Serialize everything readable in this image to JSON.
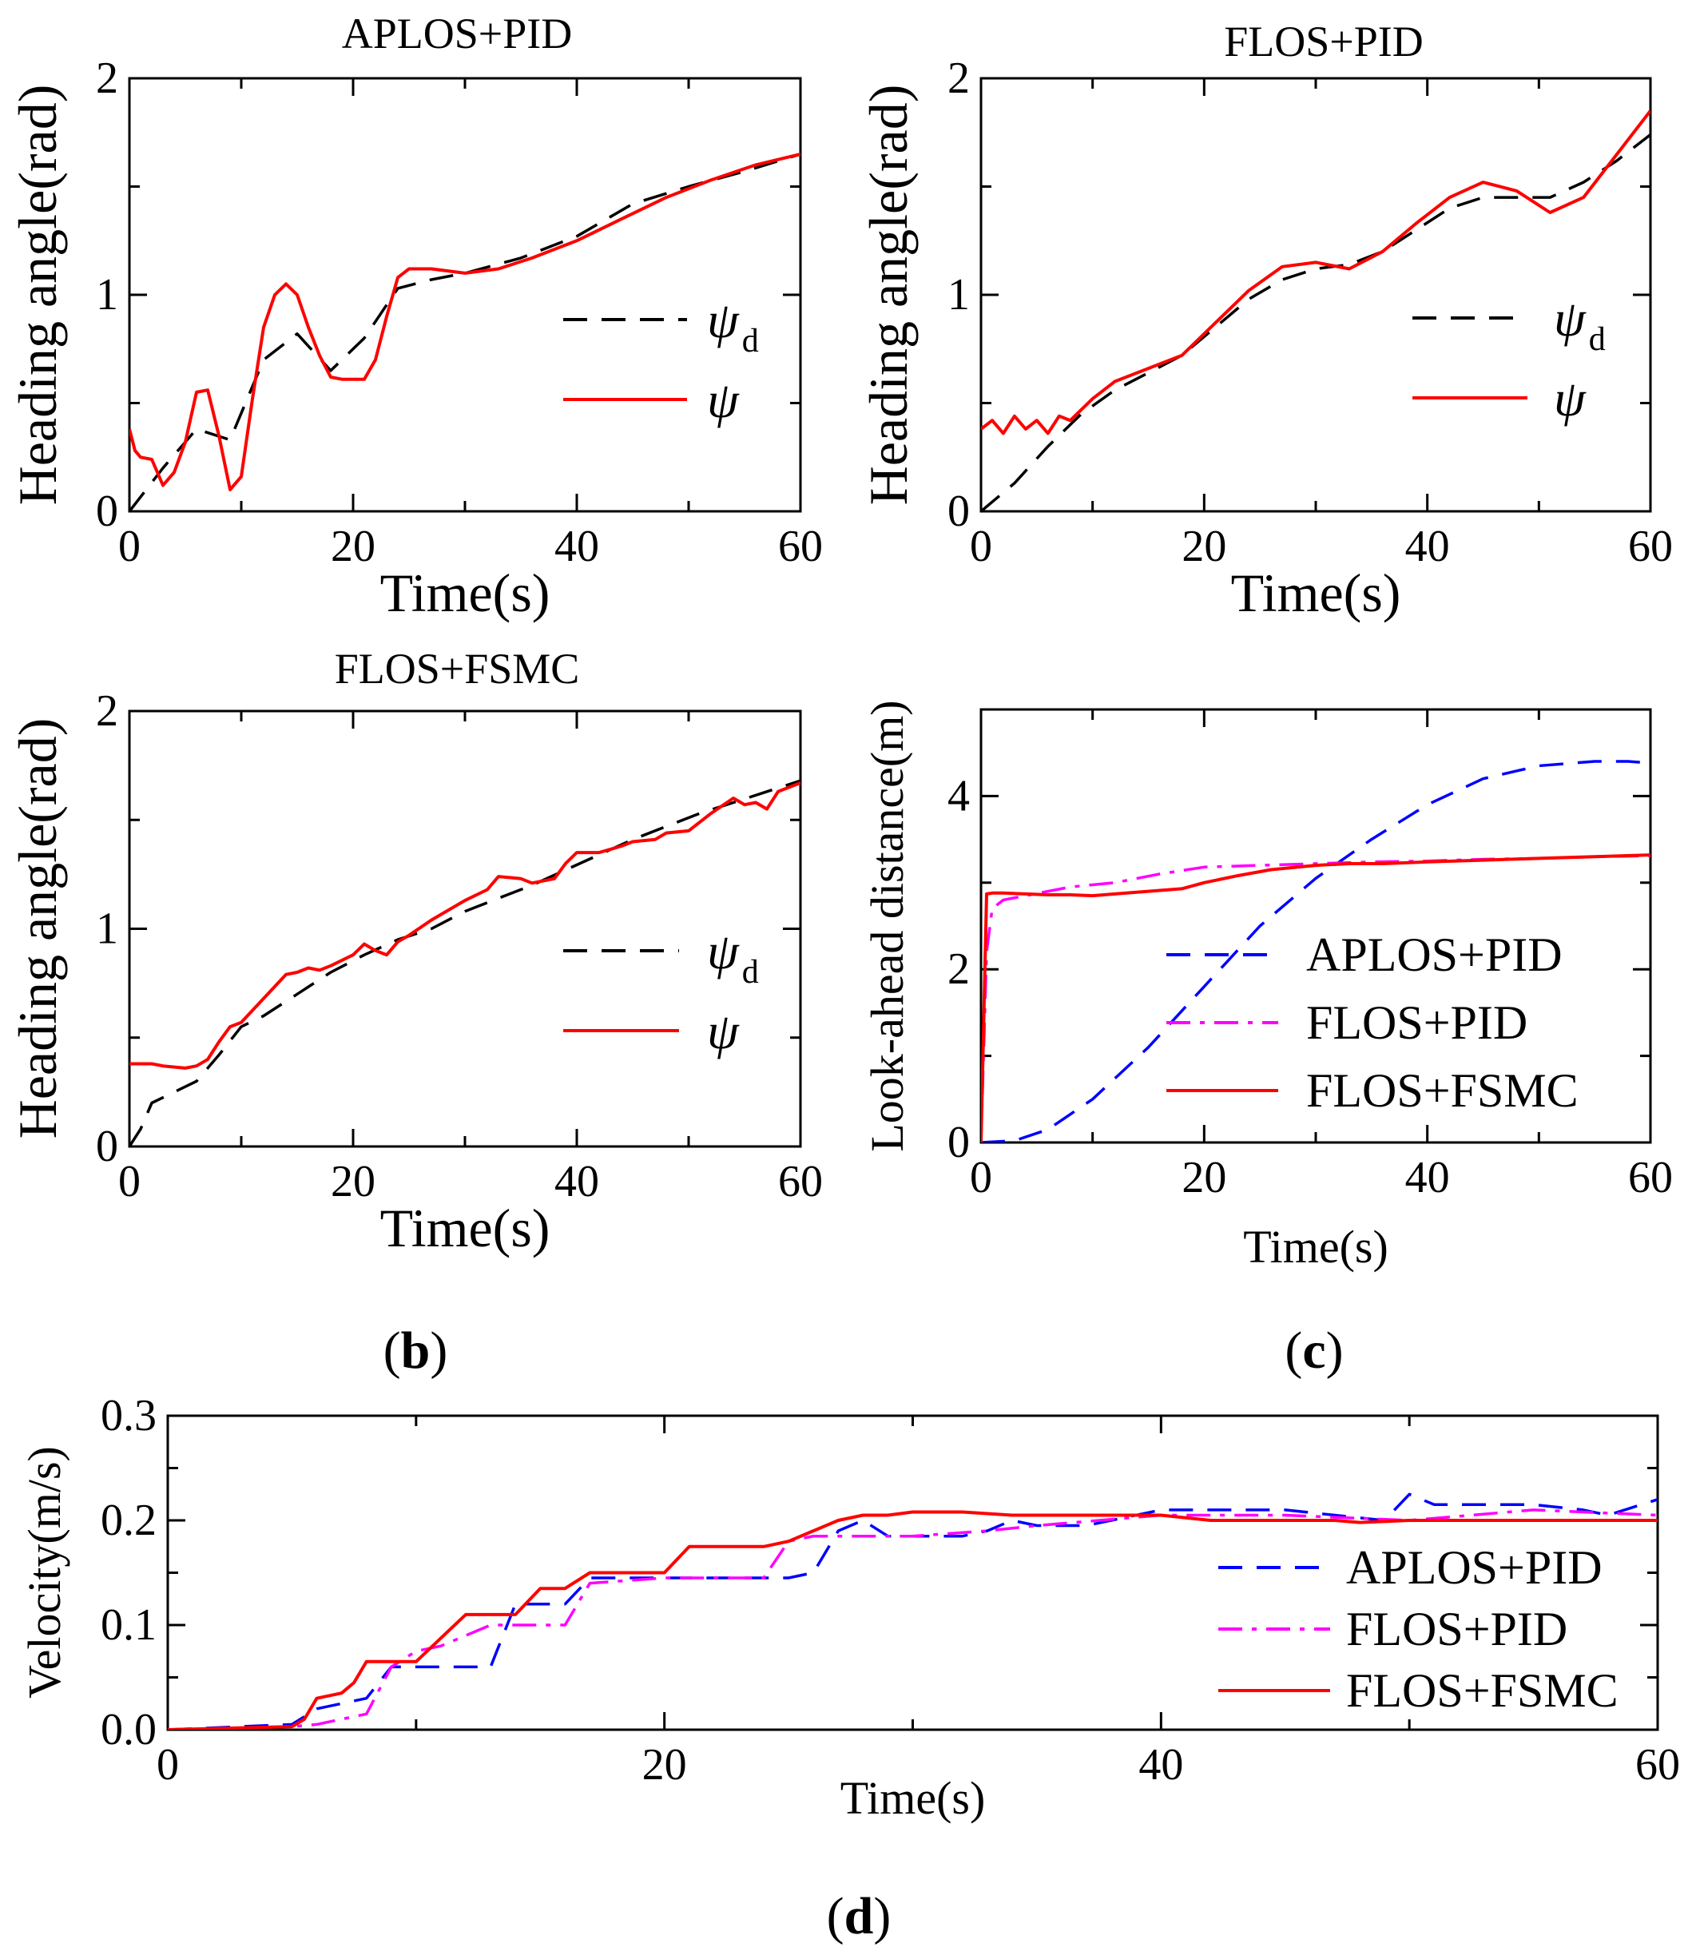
{
  "colors": {
    "desired": "#000000",
    "actual": "#ff0000",
    "aplos": "#0000ff",
    "flos_pid": "#ff00ff",
    "flos_fsmc": "#ff0000"
  },
  "sublabels": {
    "b": "b",
    "c": "c",
    "d": "d"
  },
  "chart_data": [
    {
      "id": "aplos-pid-heading",
      "type": "line",
      "title": "APLOS+PID",
      "xlabel": "Time(s)",
      "ylabel": "Heading angle(rad)",
      "xlim": [
        0,
        60
      ],
      "ylim": [
        0,
        2
      ],
      "xticks": [
        "0",
        "20",
        "40",
        "60"
      ],
      "yticks": [
        "0",
        "1",
        "2"
      ],
      "legend": {
        "position": "right",
        "entries": [
          {
            "symbol": "ψ",
            "sub": "d"
          },
          {
            "symbol": "ψ",
            "sub": ""
          }
        ]
      },
      "series": [
        {
          "name": "ψd",
          "style": "dashed",
          "color": "#000000",
          "x": [
            0,
            3,
            6,
            9,
            12,
            15,
            18,
            21,
            24,
            27,
            30,
            35,
            40,
            45,
            50,
            55,
            60
          ],
          "y": [
            0,
            0.2,
            0.38,
            0.33,
            0.7,
            0.82,
            0.65,
            0.8,
            1.03,
            1.07,
            1.1,
            1.17,
            1.27,
            1.42,
            1.5,
            1.57,
            1.65
          ]
        },
        {
          "name": "ψ",
          "style": "solid",
          "color": "#ff0000",
          "x": [
            0,
            0.5,
            1,
            2,
            3,
            4,
            5,
            6,
            7,
            8,
            9,
            10,
            11,
            12,
            13,
            14,
            15,
            16,
            17,
            18,
            19,
            20,
            21,
            22,
            23,
            24,
            25,
            27,
            30,
            33,
            36,
            40,
            44,
            48,
            52,
            56,
            60
          ],
          "y": [
            0.38,
            0.28,
            0.25,
            0.24,
            0.12,
            0.18,
            0.32,
            0.55,
            0.56,
            0.35,
            0.1,
            0.16,
            0.52,
            0.85,
            1.0,
            1.05,
            1.0,
            0.85,
            0.72,
            0.62,
            0.61,
            0.61,
            0.61,
            0.7,
            0.9,
            1.08,
            1.12,
            1.12,
            1.1,
            1.12,
            1.17,
            1.25,
            1.35,
            1.45,
            1.53,
            1.6,
            1.65
          ]
        }
      ]
    },
    {
      "id": "flos-pid-heading",
      "type": "line",
      "title": "FLOS+PID",
      "xlabel": "Time(s)",
      "ylabel": "Heading angle(rad)",
      "xlim": [
        0,
        60
      ],
      "ylim": [
        0,
        2
      ],
      "xticks": [
        "0",
        "20",
        "40",
        "60"
      ],
      "yticks": [
        "0",
        "1",
        "2"
      ],
      "legend": {
        "position": "right",
        "entries": [
          {
            "symbol": "ψ",
            "sub": "d"
          },
          {
            "symbol": "ψ",
            "sub": ""
          }
        ]
      },
      "series": [
        {
          "name": "ψd",
          "style": "dashed",
          "color": "#000000",
          "x": [
            0,
            3,
            6,
            9,
            12,
            15,
            18,
            21,
            24,
            27,
            30,
            33,
            36,
            39,
            42,
            45,
            48,
            51,
            54,
            57,
            60
          ],
          "y": [
            0,
            0.13,
            0.3,
            0.45,
            0.56,
            0.64,
            0.72,
            0.85,
            0.98,
            1.07,
            1.12,
            1.14,
            1.2,
            1.3,
            1.4,
            1.45,
            1.45,
            1.45,
            1.52,
            1.62,
            1.74
          ]
        },
        {
          "name": "ψ",
          "style": "solid",
          "color": "#ff0000",
          "x": [
            0,
            1,
            2,
            3,
            4,
            5,
            6,
            7,
            8,
            10,
            12,
            15,
            18,
            21,
            24,
            27,
            30,
            33,
            36,
            39,
            42,
            45,
            48,
            51,
            54,
            57,
            60
          ],
          "y": [
            0.38,
            0.42,
            0.36,
            0.44,
            0.38,
            0.42,
            0.36,
            0.44,
            0.42,
            0.52,
            0.6,
            0.66,
            0.72,
            0.87,
            1.02,
            1.13,
            1.15,
            1.12,
            1.2,
            1.33,
            1.45,
            1.52,
            1.48,
            1.38,
            1.45,
            1.65,
            1.85
          ]
        }
      ]
    },
    {
      "id": "flos-fsmc-heading",
      "type": "line",
      "title": "FLOS+FSMC",
      "xlabel": "Time(s)",
      "ylabel": "Heading angle(rad)",
      "xlim": [
        0,
        60
      ],
      "ylim": [
        0,
        2
      ],
      "xticks": [
        "0",
        "20",
        "40",
        "60"
      ],
      "yticks": [
        "0",
        "1",
        "2"
      ],
      "legend": {
        "position": "right",
        "entries": [
          {
            "symbol": "ψ",
            "sub": "d"
          },
          {
            "symbol": "ψ",
            "sub": ""
          }
        ]
      },
      "series": [
        {
          "name": "ψd",
          "style": "dashed",
          "color": "#000000",
          "x": [
            0,
            1,
            2,
            4,
            6,
            8,
            10,
            12,
            15,
            18,
            21,
            24,
            27,
            30,
            33,
            36,
            39,
            42,
            45,
            48,
            51,
            54,
            57,
            60
          ],
          "y": [
            0,
            0.08,
            0.2,
            0.25,
            0.3,
            0.42,
            0.55,
            0.6,
            0.7,
            0.8,
            0.88,
            0.95,
            1.0,
            1.08,
            1.14,
            1.2,
            1.27,
            1.34,
            1.41,
            1.47,
            1.53,
            1.58,
            1.63,
            1.68
          ]
        },
        {
          "name": "ψ",
          "style": "solid",
          "color": "#ff0000",
          "x": [
            0,
            2,
            3,
            5,
            6,
            7,
            8,
            9,
            10,
            12,
            14,
            15,
            16,
            17,
            18,
            20,
            21,
            22,
            23,
            24,
            25,
            27,
            30,
            32,
            33,
            35,
            36,
            38,
            39,
            40,
            42,
            44,
            45,
            47,
            48,
            50,
            52,
            54,
            55,
            56,
            57,
            58,
            60
          ],
          "y": [
            0.38,
            0.38,
            0.37,
            0.36,
            0.37,
            0.4,
            0.48,
            0.55,
            0.57,
            0.68,
            0.79,
            0.8,
            0.82,
            0.81,
            0.83,
            0.88,
            0.93,
            0.9,
            0.88,
            0.94,
            0.97,
            1.04,
            1.13,
            1.18,
            1.24,
            1.23,
            1.21,
            1.23,
            1.3,
            1.35,
            1.35,
            1.38,
            1.4,
            1.41,
            1.44,
            1.45,
            1.53,
            1.6,
            1.57,
            1.58,
            1.55,
            1.63,
            1.67
          ]
        }
      ]
    },
    {
      "id": "look-ahead-distance",
      "type": "line",
      "title": "",
      "xlabel": "Time(s)",
      "ylabel": "Look-ahead distance(m)",
      "xlim": [
        0,
        60
      ],
      "ylim": [
        0,
        5
      ],
      "xticks": [
        "0",
        "20",
        "40",
        "60"
      ],
      "yticks": [
        "0",
        "2",
        "4"
      ],
      "legend": {
        "position": "right",
        "entries": [
          {
            "label": "APLOS+PID"
          },
          {
            "label": "FLOS+PID"
          },
          {
            "label": "FLOS+FSMC"
          }
        ]
      },
      "series": [
        {
          "name": "APLOS+PID",
          "style": "dashed",
          "color": "#0000ff",
          "x": [
            0,
            3,
            6,
            10,
            15,
            20,
            25,
            30,
            35,
            40,
            45,
            50,
            55,
            58,
            60
          ],
          "y": [
            0,
            0.02,
            0.15,
            0.5,
            1.1,
            1.8,
            2.5,
            3.05,
            3.5,
            3.9,
            4.2,
            4.35,
            4.4,
            4.4,
            4.38
          ]
        },
        {
          "name": "FLOS+PID",
          "style": "dashdot",
          "color": "#ff00ff",
          "x": [
            0,
            0.5,
            1,
            2,
            4,
            8,
            12,
            16,
            20,
            25,
            30,
            35,
            40,
            45,
            50,
            55,
            60
          ],
          "y": [
            0,
            2.2,
            2.7,
            2.8,
            2.85,
            2.95,
            3.0,
            3.1,
            3.18,
            3.2,
            3.22,
            3.24,
            3.25,
            3.27,
            3.28,
            3.3,
            3.31
          ]
        },
        {
          "name": "FLOS+FSMC",
          "style": "solid",
          "color": "#ff0000",
          "x": [
            0,
            0.5,
            1,
            2,
            4,
            6,
            8,
            10,
            12,
            15,
            18,
            20,
            23,
            26,
            30,
            33,
            36,
            40,
            45,
            50,
            55,
            60
          ],
          "y": [
            0,
            2.87,
            2.88,
            2.88,
            2.87,
            2.86,
            2.86,
            2.85,
            2.87,
            2.9,
            2.93,
            3.0,
            3.08,
            3.15,
            3.2,
            3.22,
            3.22,
            3.24,
            3.26,
            3.28,
            3.3,
            3.32
          ]
        }
      ]
    },
    {
      "id": "velocity",
      "type": "line",
      "title": "",
      "xlabel": "Time(s)",
      "ylabel": "Velocity(m/s)",
      "xlim": [
        0,
        60
      ],
      "ylim": [
        0,
        0.3
      ],
      "xticks": [
        "0",
        "20",
        "40",
        "60"
      ],
      "yticks": [
        "0.0",
        "0.1",
        "0.2",
        "0.3"
      ],
      "legend": {
        "position": "right",
        "entries": [
          {
            "label": "APLOS+PID"
          },
          {
            "label": "FLOS+PID"
          },
          {
            "label": "FLOS+FSMC"
          }
        ]
      },
      "series": [
        {
          "name": "APLOS+PID",
          "style": "dashed",
          "color": "#0000ff",
          "x": [
            0,
            5,
            6,
            8,
            9,
            12,
            13,
            14,
            16,
            17,
            25,
            26,
            27,
            28,
            29,
            32,
            33,
            34,
            35,
            37,
            40,
            45,
            47,
            49,
            50,
            51,
            55,
            57,
            58,
            60
          ],
          "y": [
            0,
            0.005,
            0.02,
            0.03,
            0.06,
            0.06,
            0.06,
            0.12,
            0.12,
            0.145,
            0.145,
            0.15,
            0.19,
            0.2,
            0.185,
            0.185,
            0.19,
            0.2,
            0.195,
            0.195,
            0.21,
            0.21,
            0.205,
            0.2,
            0.225,
            0.215,
            0.215,
            0.21,
            0.205,
            0.22
          ]
        },
        {
          "name": "FLOS+PID",
          "style": "dashdot",
          "color": "#ff00ff",
          "x": [
            0,
            5,
            6,
            8,
            9,
            10,
            11,
            12,
            13,
            15,
            16,
            17,
            20,
            24,
            25,
            26,
            27,
            30,
            33,
            35,
            40,
            45,
            50,
            55,
            60
          ],
          "y": [
            0,
            0.003,
            0.005,
            0.015,
            0.06,
            0.075,
            0.08,
            0.09,
            0.1,
            0.1,
            0.1,
            0.14,
            0.145,
            0.145,
            0.18,
            0.185,
            0.185,
            0.185,
            0.19,
            0.195,
            0.205,
            0.205,
            0.2,
            0.21,
            0.205
          ]
        },
        {
          "name": "FLOS+FSMC",
          "style": "solid",
          "color": "#ff0000",
          "x": [
            0,
            5,
            5.5,
            6,
            7,
            7.5,
            8,
            10,
            12,
            14,
            15,
            16,
            17,
            18,
            19,
            20,
            21,
            23,
            24,
            25,
            26,
            27,
            28,
            29,
            30,
            32,
            34,
            36,
            38,
            40,
            42,
            44,
            46,
            47,
            48,
            50,
            55,
            60
          ],
          "y": [
            0,
            0.003,
            0.01,
            0.03,
            0.035,
            0.045,
            0.065,
            0.065,
            0.11,
            0.11,
            0.135,
            0.135,
            0.15,
            0.15,
            0.15,
            0.15,
            0.175,
            0.175,
            0.175,
            0.18,
            0.19,
            0.2,
            0.205,
            0.205,
            0.208,
            0.208,
            0.205,
            0.205,
            0.205,
            0.205,
            0.2,
            0.2,
            0.2,
            0.2,
            0.198,
            0.2,
            0.2,
            0.2
          ]
        }
      ]
    }
  ]
}
